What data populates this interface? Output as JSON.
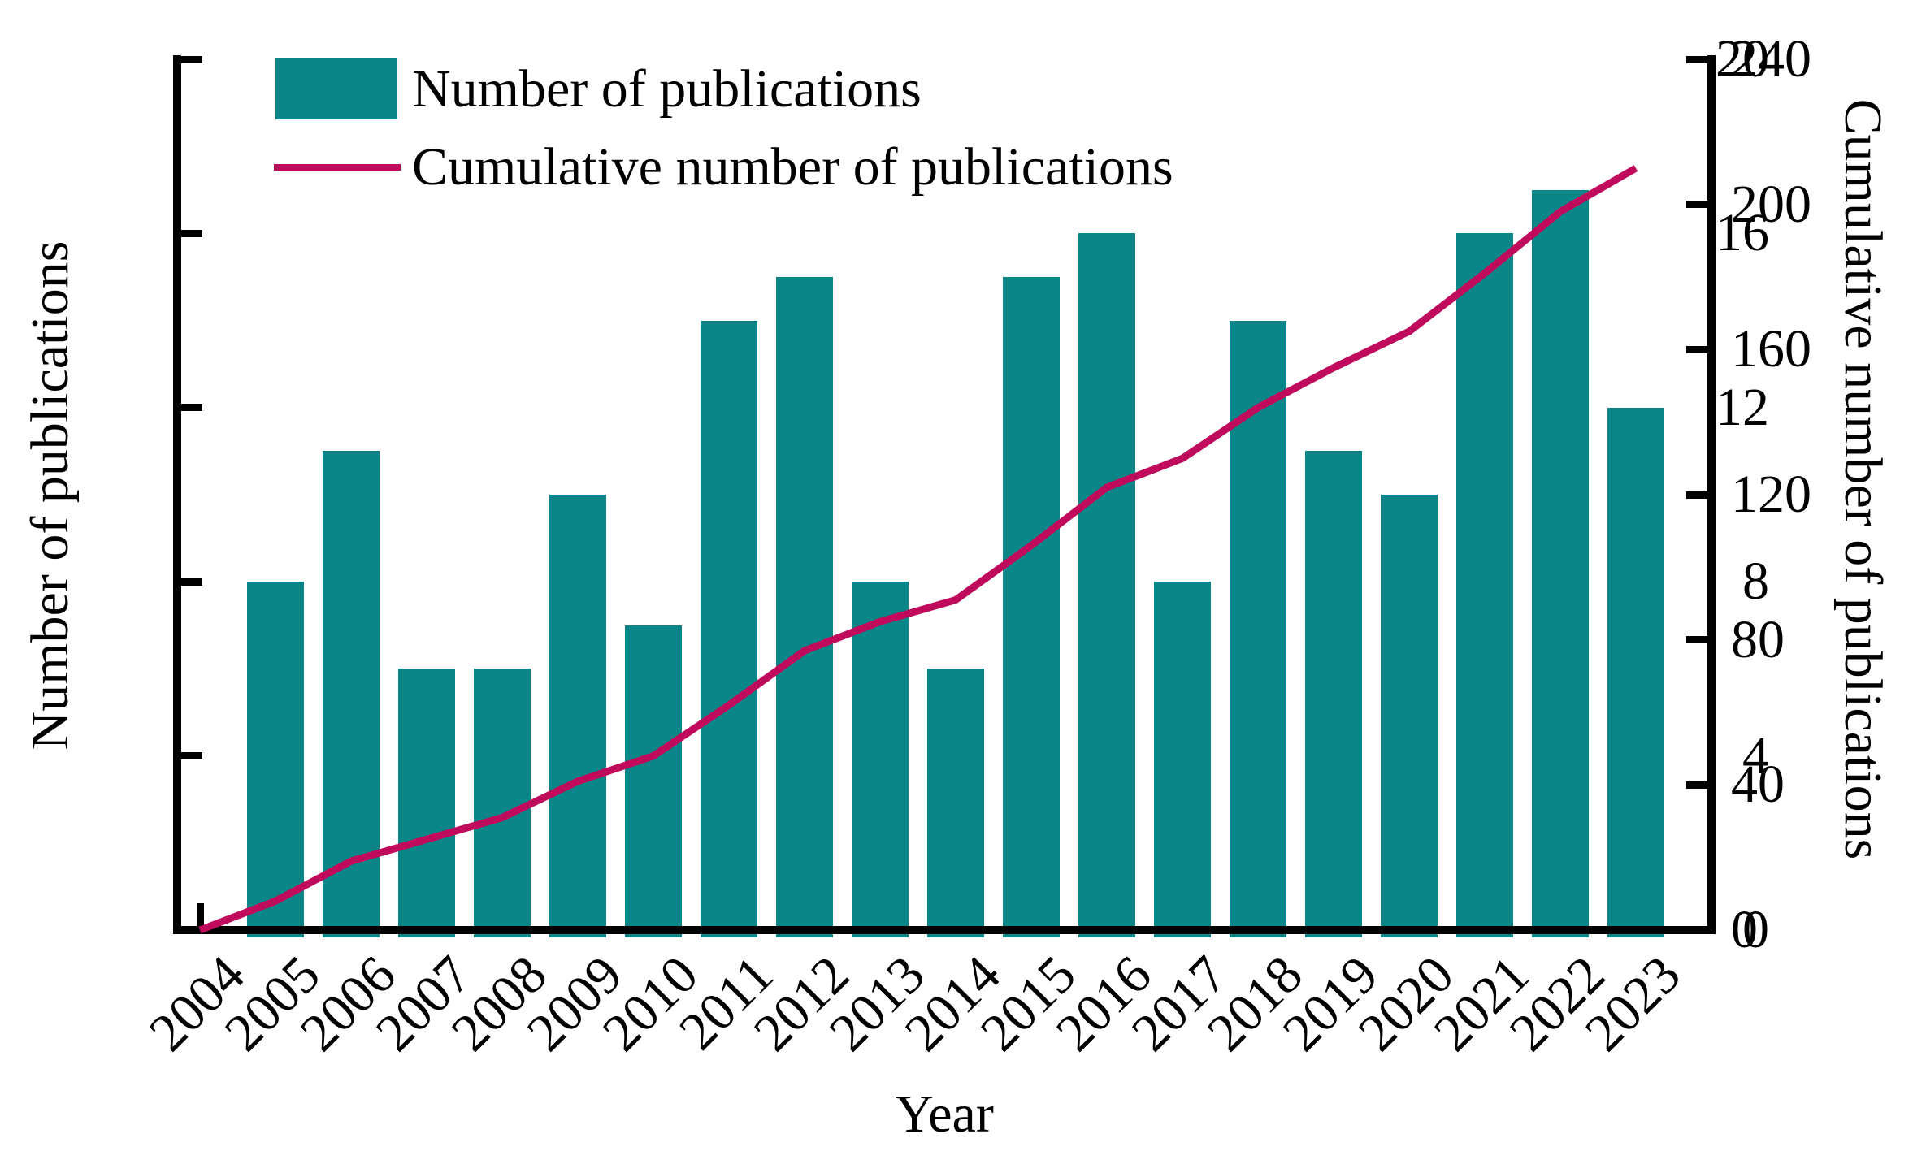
{
  "chart_data": {
    "type": "bar+line",
    "xlabel": "Year",
    "ylabel_left": "Number of publications",
    "ylabel_right": "Cumulative number of publications",
    "categories": [
      "2004",
      "2005",
      "2006",
      "2007",
      "2008",
      "2009",
      "2010",
      "2011",
      "2012",
      "2013",
      "2014",
      "2015",
      "2016",
      "2017",
      "2018",
      "2019",
      "2020",
      "2021",
      "2022",
      "2023"
    ],
    "series": [
      {
        "name": "Number of publications",
        "type": "bar",
        "color": "#0a8688",
        "values": [
          0,
          8,
          11,
          6,
          6,
          10,
          7,
          14,
          15,
          8,
          6,
          15,
          16,
          8,
          14,
          11,
          10,
          16,
          17,
          12
        ]
      },
      {
        "name": "Cumulative number of publications",
        "type": "line",
        "color": "#c00a5c",
        "values": [
          0,
          8,
          19,
          25,
          31,
          41,
          48,
          62,
          77,
          85,
          91,
          106,
          122,
          130,
          144,
          155,
          165,
          181,
          198,
          210
        ]
      }
    ],
    "left_axis": {
      "min": 0,
      "max": 20,
      "ticks": [
        0,
        4,
        8,
        12,
        16,
        20
      ]
    },
    "right_axis": {
      "min": 0,
      "max": 240,
      "ticks": [
        0,
        40,
        80,
        120,
        160,
        200,
        240
      ]
    },
    "legend_position": "top-left",
    "grid": false,
    "colors": {
      "bar": "#0a8688",
      "line": "#c00a5c",
      "axis": "#000000",
      "background": "#ffffff"
    }
  }
}
